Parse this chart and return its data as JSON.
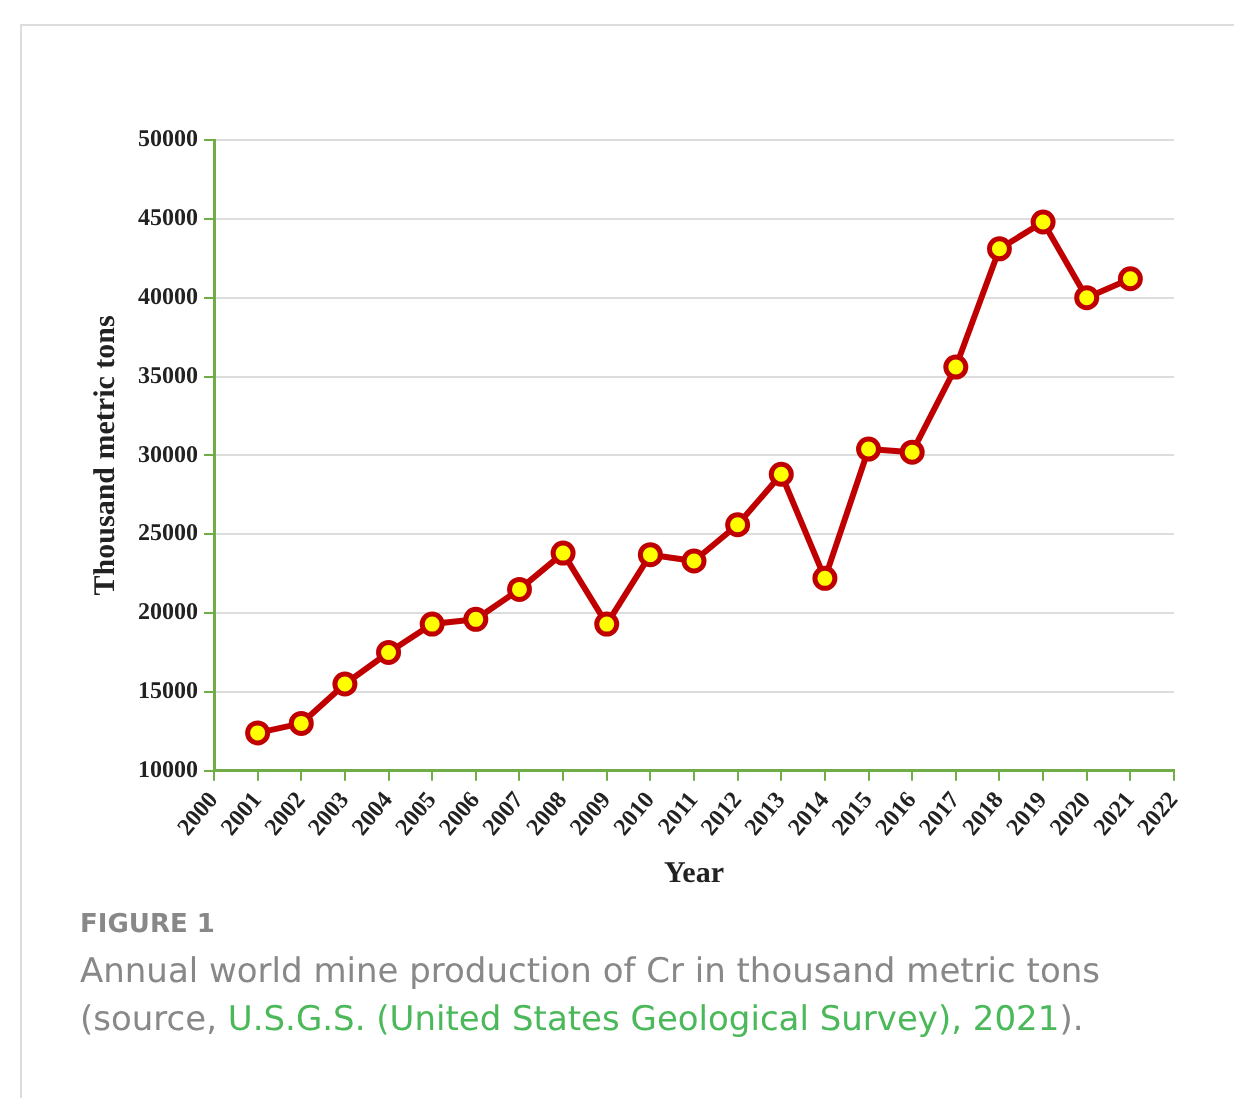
{
  "chart_data": {
    "type": "line",
    "xlabel": "Year",
    "ylabel": "Thousand metric tons",
    "x": [
      2001,
      2002,
      2003,
      2004,
      2005,
      2006,
      2007,
      2008,
      2009,
      2010,
      2011,
      2012,
      2013,
      2014,
      2015,
      2016,
      2017,
      2018,
      2019,
      2020,
      2021
    ],
    "series": [
      {
        "color": "#c00000",
        "values": [
          12400,
          13000,
          15500,
          17500,
          19300,
          19600,
          21500,
          23800,
          19300,
          23700,
          23300,
          25600,
          28800,
          22200,
          30400,
          30200,
          35600,
          43100,
          44800,
          40000,
          41200
        ]
      }
    ],
    "xlim": [
      2000,
      2022
    ],
    "xticks": [
      2000,
      2001,
      2002,
      2003,
      2004,
      2005,
      2006,
      2007,
      2008,
      2009,
      2010,
      2011,
      2012,
      2013,
      2014,
      2015,
      2016,
      2017,
      2018,
      2019,
      2020,
      2021,
      2022
    ],
    "ylim": [
      10000,
      50000
    ],
    "yticks": [
      10000,
      15000,
      20000,
      25000,
      30000,
      35000,
      40000,
      45000,
      50000
    ],
    "grid": "y",
    "legend": false,
    "marker": "circle",
    "line_style": "solid",
    "annotations": [
      "FIGURE 1",
      "Annual world mine production of Cr in thousand metric tons (source, ",
      "U.S.G.S. (United States Geological Survey), 2021",
      ")."
    ]
  }
}
